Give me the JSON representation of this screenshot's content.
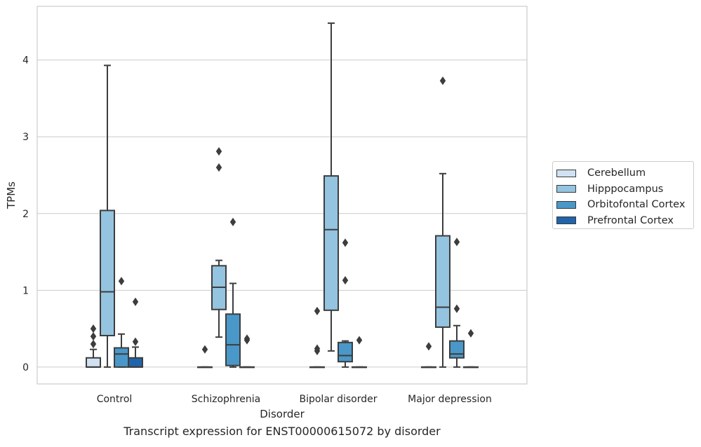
{
  "chart_data": {
    "type": "box",
    "title": "",
    "caption": "Transcript expression for ENST00000615072 by disorder",
    "xlabel": "Disorder",
    "ylabel": "TPMs",
    "ylim": [
      -0.22,
      4.7
    ],
    "yticks": [
      0,
      1,
      2,
      3,
      4
    ],
    "grid": "horizontal",
    "legend_position": "right",
    "categories": [
      "Control",
      "Schizophrenia",
      "Bipolar disorder",
      "Major depression"
    ],
    "series": [
      {
        "name": "Cerebellum",
        "color": "#d0e1f2",
        "boxes": [
          {
            "q1": 0.0,
            "median": 0.0,
            "q3": 0.12,
            "whisker_low": 0.0,
            "whisker_high": 0.23,
            "outliers": [
              0.3,
              0.4,
              0.5
            ]
          },
          {
            "q1": 0.0,
            "median": 0.0,
            "q3": 0.0,
            "whisker_low": 0.0,
            "whisker_high": 0.0,
            "outliers": [
              0.23
            ]
          },
          {
            "q1": 0.0,
            "median": 0.0,
            "q3": 0.0,
            "whisker_low": 0.0,
            "whisker_high": 0.0,
            "outliers": [
              0.21,
              0.24,
              0.73
            ]
          },
          {
            "q1": 0.0,
            "median": 0.0,
            "q3": 0.0,
            "whisker_low": 0.0,
            "whisker_high": 0.0,
            "outliers": [
              0.27
            ]
          }
        ]
      },
      {
        "name": "Hipppocampus",
        "color": "#94c4df",
        "boxes": [
          {
            "q1": 0.41,
            "median": 0.98,
            "q3": 2.04,
            "whisker_low": 0.0,
            "whisker_high": 3.93,
            "outliers": []
          },
          {
            "q1": 0.75,
            "median": 1.04,
            "q3": 1.32,
            "whisker_low": 0.39,
            "whisker_high": 1.39,
            "outliers": [
              2.6,
              2.81
            ]
          },
          {
            "q1": 0.74,
            "median": 1.79,
            "q3": 2.49,
            "whisker_low": 0.21,
            "whisker_high": 4.48,
            "outliers": []
          },
          {
            "q1": 0.52,
            "median": 0.78,
            "q3": 1.71,
            "whisker_low": 0.0,
            "whisker_high": 2.52,
            "outliers": [
              3.73
            ]
          }
        ]
      },
      {
        "name": "Orbitofontal Cortex",
        "color": "#4a98c9",
        "boxes": [
          {
            "q1": 0.0,
            "median": 0.17,
            "q3": 0.25,
            "whisker_low": 0.0,
            "whisker_high": 0.43,
            "outliers": [
              1.12
            ]
          },
          {
            "q1": 0.02,
            "median": 0.29,
            "q3": 0.69,
            "whisker_low": 0.0,
            "whisker_high": 1.09,
            "outliers": [
              1.89
            ]
          },
          {
            "q1": 0.07,
            "median": 0.15,
            "q3": 0.32,
            "whisker_low": 0.0,
            "whisker_high": 0.34,
            "outliers": [
              1.13,
              1.62
            ]
          },
          {
            "q1": 0.12,
            "median": 0.17,
            "q3": 0.34,
            "whisker_low": 0.0,
            "whisker_high": 0.54,
            "outliers": [
              0.76,
              1.63
            ]
          }
        ]
      },
      {
        "name": "Prefrontal Cortex",
        "color": "#2164ab",
        "boxes": [
          {
            "q1": 0.0,
            "median": 0.0,
            "q3": 0.12,
            "whisker_low": 0.0,
            "whisker_high": 0.26,
            "outliers": [
              0.33,
              0.85
            ]
          },
          {
            "q1": 0.0,
            "median": 0.0,
            "q3": 0.0,
            "whisker_low": 0.0,
            "whisker_high": 0.0,
            "outliers": [
              0.35,
              0.37
            ]
          },
          {
            "q1": 0.0,
            "median": 0.0,
            "q3": 0.0,
            "whisker_low": 0.0,
            "whisker_high": 0.0,
            "outliers": [
              0.35
            ]
          },
          {
            "q1": 0.0,
            "median": 0.0,
            "q3": 0.0,
            "whisker_low": 0.0,
            "whisker_high": 0.0,
            "outliers": [
              0.44
            ]
          }
        ]
      }
    ]
  }
}
